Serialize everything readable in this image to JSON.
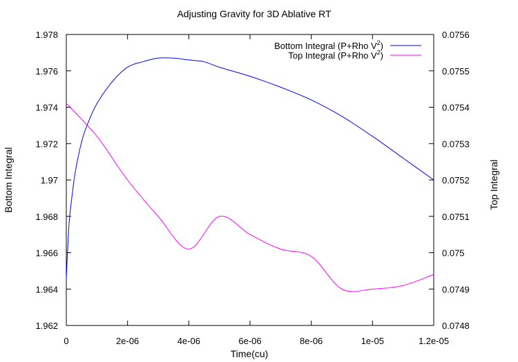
{
  "chart_data": {
    "type": "line",
    "title": "Adjusting Gravity for 3D Ablative RT",
    "xlabel": "Time(cu)",
    "ylabel": "Bottom Integral",
    "y2label": "Top Integral",
    "xlim": [
      0,
      1.2e-05
    ],
    "ylim": [
      1.962,
      1.978
    ],
    "y2lim": [
      0.0748,
      0.0756
    ],
    "grid": false,
    "legend_position": "top-right",
    "x_tick_labels": [
      "0",
      "2e-06",
      "4e-06",
      "6e-06",
      "8e-06",
      "1e-05",
      "1.2e-05"
    ],
    "y_tick_labels": [
      "1.962",
      "1.964",
      "1.966",
      "1.968",
      "1.97",
      "1.972",
      "1.974",
      "1.976",
      "1.978"
    ],
    "y2_tick_labels": [
      "0.0748",
      "0.0749",
      "0.075",
      "0.0751",
      "0.0752",
      "0.0753",
      "0.0754",
      "0.0755",
      "0.0756"
    ],
    "series": [
      {
        "name_main": "Bottom Integral (P+Rho V",
        "name_sup": "2",
        "name_end": ")",
        "axis": "left",
        "color": "#0000ff",
        "x": [
          0,
          5e-08,
          1e-07,
          2e-07,
          3e-07,
          5e-07,
          7e-07,
          1e-06,
          1.5e-06,
          2e-06,
          2.5e-06,
          3e-06,
          3.5e-06,
          4e-06,
          4.5e-06,
          5e-06,
          6e-06,
          7e-06,
          8e-06,
          9e-06,
          1e-05,
          1.1e-05,
          1.2e-05
        ],
        "y": [
          1.9646,
          1.9664,
          1.9678,
          1.9693,
          1.9705,
          1.9721,
          1.9731,
          1.9742,
          1.9754,
          1.9762,
          1.9765,
          1.9767,
          1.9767,
          1.9766,
          1.9765,
          1.9762,
          1.9757,
          1.9751,
          1.9744,
          1.9735,
          1.9724,
          1.9712,
          1.97
        ]
      },
      {
        "name_main": "Top Integral (P+Rho V",
        "name_sup": "2",
        "name_end": ")",
        "axis": "right",
        "color": "#ff00ff",
        "x": [
          0,
          1e-06,
          2e-06,
          3e-06,
          4e-06,
          5e-06,
          6e-06,
          7e-06,
          8e-06,
          9e-06,
          1e-05,
          1.1e-05,
          1.2e-05
        ],
        "y": [
          0.07541,
          0.07532,
          0.0752,
          0.0751,
          0.07501,
          0.0751,
          0.07505,
          0.07501,
          0.07499,
          0.0749,
          0.0749,
          0.07491,
          0.07494
        ]
      }
    ]
  }
}
